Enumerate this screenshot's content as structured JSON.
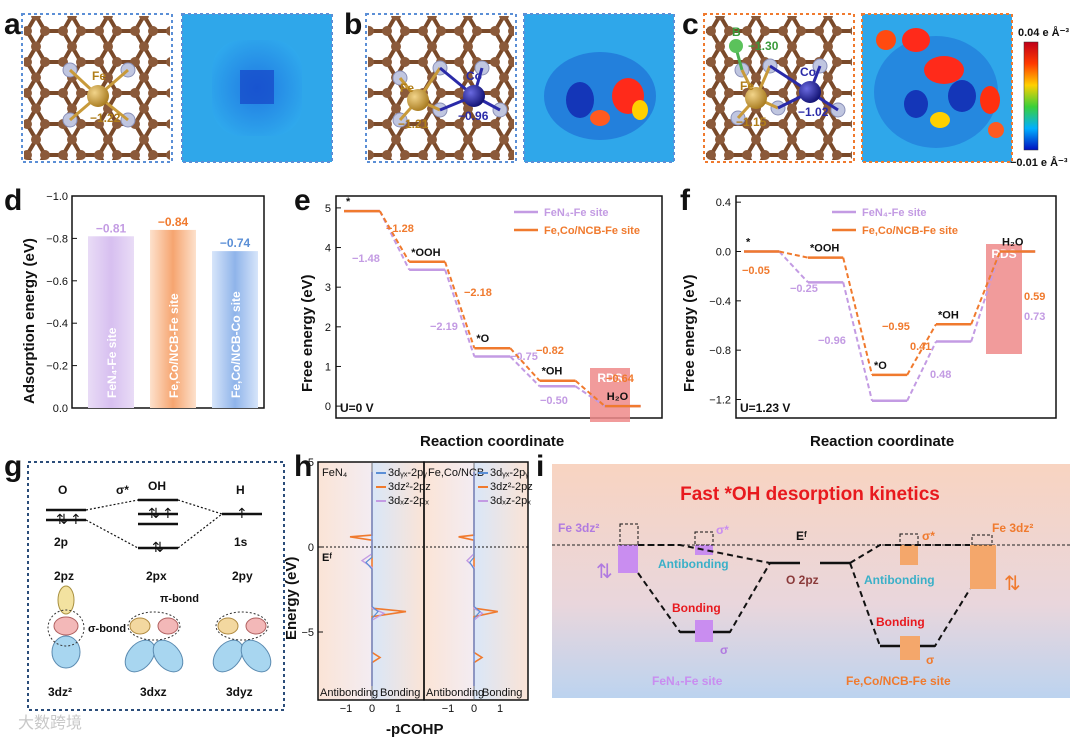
{
  "panels": {
    "a": "a",
    "b": "b",
    "c": "c",
    "d": "d",
    "e": "e",
    "f": "f",
    "g": "g",
    "h": "h",
    "i": "i"
  },
  "colors": {
    "purple": "#c39be3",
    "orange": "#f07a2e",
    "blue": "#5b8fd6",
    "rds": "#ef8a8a",
    "charge_neg": "#3aa8e8",
    "fe": "#c89a3a",
    "co": "#2a2aa8",
    "b": "#4caf50",
    "c": "#8a5a3a",
    "n": "#b8bdd8"
  },
  "structures": {
    "a": {
      "fe_label": "Fe",
      "fe_charge": "−1.22"
    },
    "b": {
      "fe_label": "Fe",
      "fe_charge": "−1.21",
      "co_label": "Co",
      "co_charge": "−0.96"
    },
    "c": {
      "b_label": "B",
      "b_charge": "−1.30",
      "fe_label": "Fe",
      "fe_charge": "−1.15",
      "co_label": "Co",
      "co_charge": "−1.02"
    },
    "colorbar": {
      "max": "0.04 e Å⁻³",
      "min": "−0.01 e Å⁻³"
    }
  },
  "chart_data": [
    {
      "panel": "d",
      "type": "bar",
      "ylabel": "Adsorption energy (eV)",
      "ylim": [
        0,
        -1.0
      ],
      "yticks": [
        "−1.0",
        "−0.8",
        "−0.6",
        "−0.4",
        "−0.2",
        "0.0"
      ],
      "categories": [
        "FeN₄-Fe site",
        "Fe,Co/NCB-Fe site",
        "Fe,Co/NCB-Co site"
      ],
      "values": [
        -0.81,
        -0.84,
        -0.74
      ],
      "value_labels": [
        "−0.81",
        "−0.84",
        "−0.74"
      ]
    },
    {
      "panel": "e",
      "type": "line",
      "xlabel": "Reaction coordinate",
      "ylabel": "Free energy (eV)",
      "ylim": [
        -0.3,
        5.3
      ],
      "yticks": [
        "0",
        "1",
        "2",
        "3",
        "4",
        "5"
      ],
      "condition": "U=0 V",
      "legend": [
        "FeN₄-Fe site",
        "Fe,Co/NCB-Fe site"
      ],
      "states": [
        "*",
        "*OOH",
        "*O",
        "*OH",
        "H₂O"
      ],
      "series": [
        {
          "name": "FeN₄-Fe site",
          "values": [
            4.92,
            3.44,
            1.25,
            0.5,
            0
          ],
          "step_labels": [
            "−1.48",
            "−2.19",
            "−0.75",
            "−0.50"
          ]
        },
        {
          "name": "Fe,Co/NCB-Fe site",
          "values": [
            4.92,
            3.64,
            1.46,
            0.64,
            0
          ],
          "step_labels": [
            "−1.28",
            "−2.18",
            "−0.82",
            "−0.64"
          ]
        }
      ],
      "annotation": "RDS"
    },
    {
      "panel": "f",
      "type": "line",
      "xlabel": "Reaction coordinate",
      "ylabel": "Free energy (eV)",
      "ylim": [
        -1.35,
        0.45
      ],
      "yticks": [
        "−1.2",
        "−0.8",
        "−0.4",
        "0.0",
        "0.4"
      ],
      "condition": "U=1.23 V",
      "legend": [
        "FeN₄-Fe site",
        "Fe,Co/NCB-Fe site"
      ],
      "states": [
        "*",
        "*OOH",
        "*O",
        "*OH",
        "H₂O"
      ],
      "series": [
        {
          "name": "FeN₄-Fe site",
          "values": [
            0,
            -0.25,
            -1.21,
            -0.73,
            0
          ],
          "step_labels": [
            "−0.25",
            "−0.96",
            "0.48",
            "0.73"
          ]
        },
        {
          "name": "Fe,Co/NCB-Fe site",
          "values": [
            0,
            -0.05,
            -1.0,
            -0.59,
            0
          ],
          "step_labels": [
            "−0.05",
            "−0.95",
            "0.41",
            "0.59"
          ]
        }
      ],
      "annotation": "RDS"
    },
    {
      "panel": "h",
      "type": "line",
      "xlabel": "-pCOHP",
      "ylabel": "Energy (eV)",
      "ylim": [
        -9,
        5
      ],
      "yticks": [
        "5",
        "0",
        "−5"
      ],
      "xticks": [
        "−1",
        "0",
        "1"
      ],
      "subpanels": [
        {
          "name": "FeN₄",
          "legend": [
            "3dᵧₓ-2pᵧ",
            "3dz²-2pz",
            "3dₓz-2pₓ"
          ],
          "regions": [
            "Antibonding",
            "Bonding"
          ]
        },
        {
          "name": "Fe,Co/NCB",
          "legend": [
            "3dᵧₓ-2pᵧ",
            "3dz²-2pz",
            "3dₓz-2pₓ"
          ],
          "regions": [
            "Antibonding",
            "Bonding"
          ]
        }
      ],
      "ef_label": "Eᶠ"
    }
  ],
  "g": {
    "o": "O",
    "oh": "OH",
    "h": "H",
    "sigma_star": "σ*",
    "o_orb": "2p",
    "h_orb": "1s",
    "orbs": [
      "2pz",
      "2px",
      "2py"
    ],
    "pi_bond": "π-bond",
    "sigma_bond": "σ-bond",
    "d_orbs": [
      "3dz²",
      "3dxz",
      "3dyz"
    ]
  },
  "i": {
    "title": "Fast *OH desorption kinetics",
    "left_fe": "Fe 3dz²",
    "right_fe": "Fe 3dz²",
    "sigma_star": "σ*",
    "sigma": "σ",
    "ef": "Eᶠ",
    "o2pz": "O 2pz",
    "antibonding": "Antibonding",
    "bonding": "Bonding",
    "left_site": "FeN₄-Fe site",
    "right_site": "Fe,Co/NCB-Fe site"
  },
  "watermark": "大数跨境"
}
